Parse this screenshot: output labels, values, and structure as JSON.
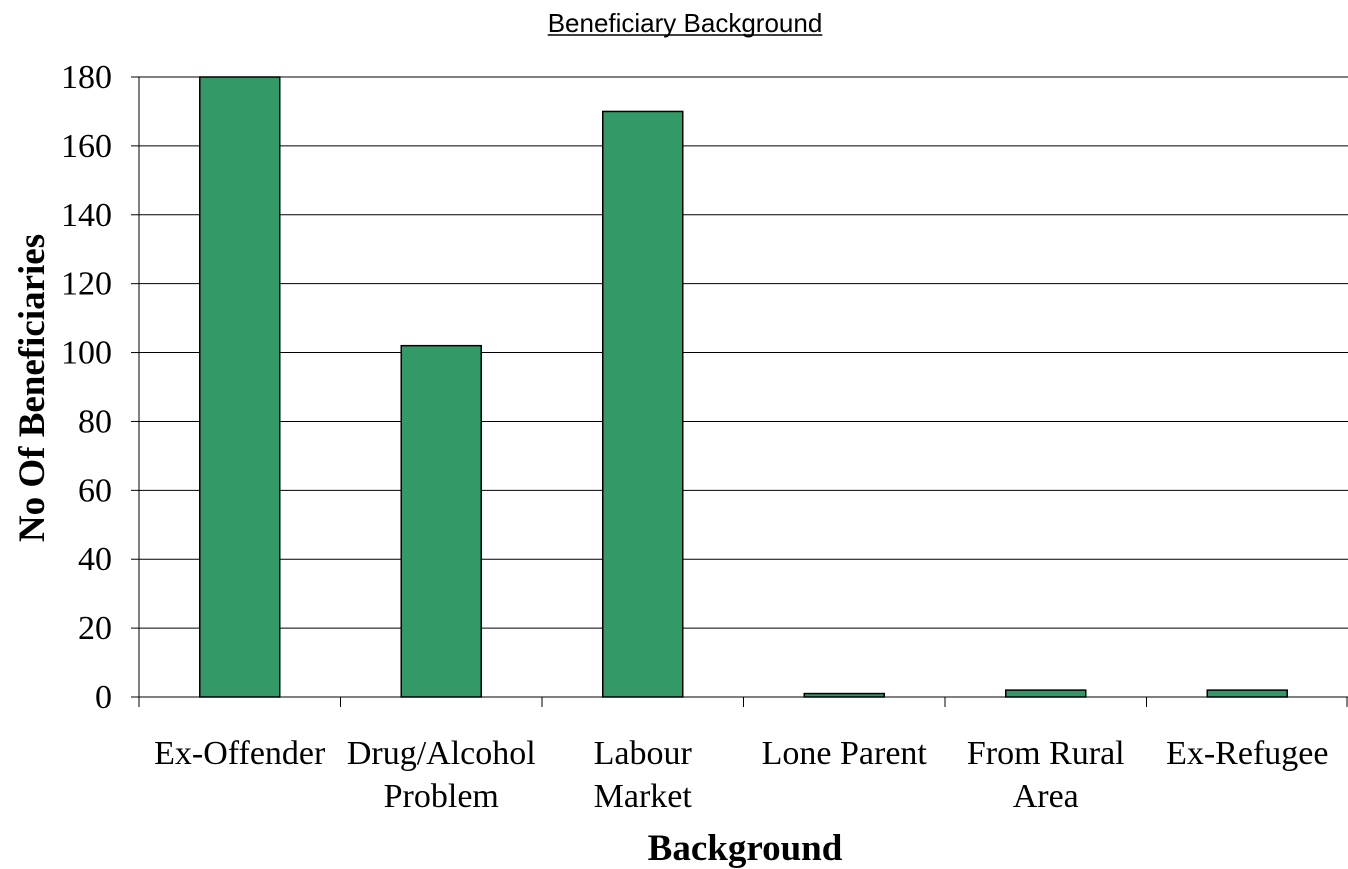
{
  "chart_data": {
    "type": "bar",
    "title": "Beneficiary Background",
    "xlabel": "Background",
    "ylabel": "No Of Beneficiaries",
    "categories": [
      [
        "Ex-Offender"
      ],
      [
        "Drug/Alcohol",
        "Problem"
      ],
      [
        "Labour",
        "Market"
      ],
      [
        "Lone Parent"
      ],
      [
        "From Rural",
        "Area"
      ],
      [
        "Ex-Refugee"
      ]
    ],
    "values": [
      180,
      102,
      170,
      1,
      2,
      2
    ],
    "ylim": [
      0,
      180
    ],
    "yticks": [
      0,
      20,
      40,
      60,
      80,
      100,
      120,
      140,
      160,
      180
    ],
    "grid": true,
    "legend": "none",
    "colors": {
      "bar_fill": "#339966",
      "bar_stroke": "#000000",
      "grid": "#000000"
    }
  }
}
